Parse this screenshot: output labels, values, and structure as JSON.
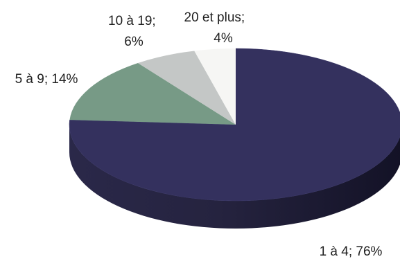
{
  "chart_data": {
    "type": "pie",
    "title": "",
    "slices": [
      {
        "category": "1 à 4",
        "value": 76,
        "label_lines": [
          "1 à 4; 76%"
        ],
        "color": "#34315e"
      },
      {
        "category": "5 à 9",
        "value": 14,
        "label_lines": [
          "5 à 9; 14%"
        ],
        "color": "#779a86"
      },
      {
        "category": "10 à 19",
        "value": 6,
        "label_lines": [
          "10 à 19;",
          "6%"
        ],
        "color": "#c4c7c6"
      },
      {
        "category": "20 et plus",
        "value": 4,
        "label_lines": [
          "20 et plus;",
          "4%"
        ],
        "color": "#f6f6f4"
      }
    ],
    "legend": "none",
    "style": "3d-tilted"
  }
}
